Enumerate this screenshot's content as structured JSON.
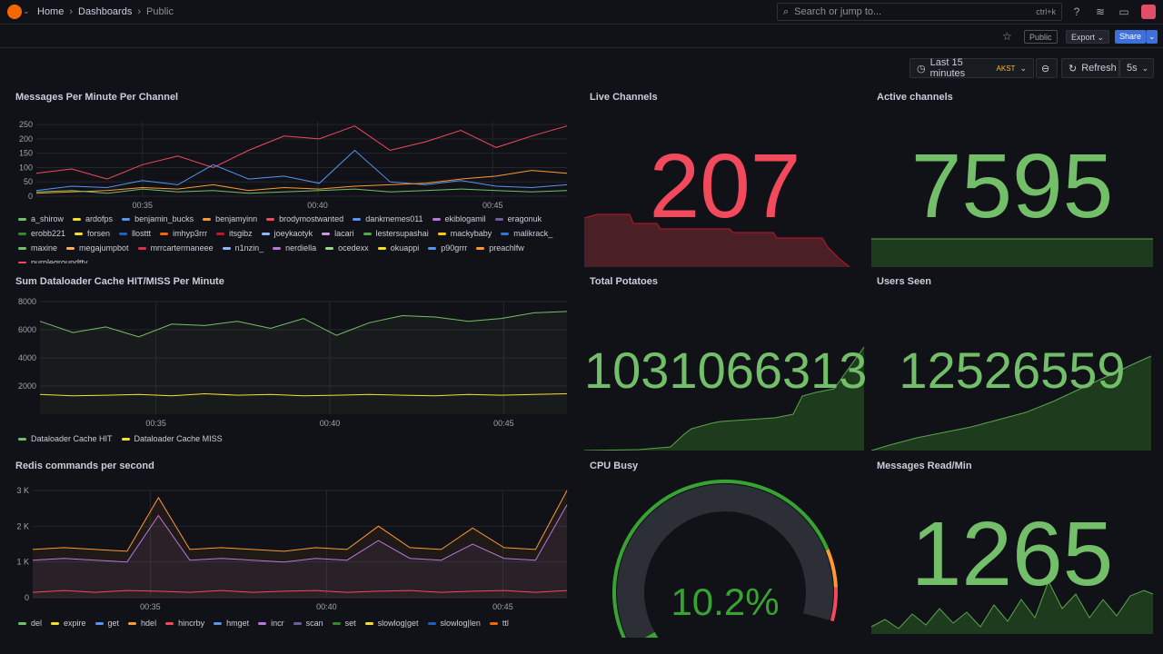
{
  "topbar": {
    "breadcrumbs": [
      "Home",
      "Dashboards",
      "Public"
    ],
    "search_placeholder": "Search or jump to...",
    "search_shortcut": "ctrl+k",
    "icons": [
      "grafana-logo-icon",
      "help-icon",
      "news-icon",
      "kiosk-icon",
      "avatar"
    ]
  },
  "subbar": {
    "public_badge": "Public",
    "export_label": "Export",
    "share_label": "Share"
  },
  "timebar": {
    "range": "Last 15 minutes",
    "timezone": "AKST",
    "refresh_label": "Refresh",
    "interval": "5s"
  },
  "colors": {
    "green": "#73bf69",
    "red": "#f2495c",
    "yellow": "#fade2a",
    "orange": "#ff9830",
    "blue": "#5794f2",
    "purple": "#b877d9"
  },
  "panels": {
    "messages": {
      "title": "Messages Per Minute Per Channel",
      "legend": [
        {
          "name": "a_shirow",
          "color": "#73bf69"
        },
        {
          "name": "ardofps",
          "color": "#fade2a"
        },
        {
          "name": "benjamin_bucks",
          "color": "#5794f2"
        },
        {
          "name": "benjamyinn",
          "color": "#ff9830"
        },
        {
          "name": "brodymostwanted",
          "color": "#f2495c"
        },
        {
          "name": "dankmemes011",
          "color": "#5794f2"
        },
        {
          "name": "ekiblogamil",
          "color": "#b877d9"
        },
        {
          "name": "eragonuk",
          "color": "#705da0"
        },
        {
          "name": "erobb221",
          "color": "#37872d"
        },
        {
          "name": "forsen",
          "color": "#fade2a"
        },
        {
          "name": "llosttt",
          "color": "#1f60c4"
        },
        {
          "name": "imhyp3rrr",
          "color": "#fa6400"
        },
        {
          "name": "itsgibz",
          "color": "#c4162a"
        },
        {
          "name": "joeykaotyk",
          "color": "#8ab8ff"
        },
        {
          "name": "lacari",
          "color": "#ca95e5"
        },
        {
          "name": "lestersupashai",
          "color": "#56a64b"
        },
        {
          "name": "mackybaby",
          "color": "#f2cc0c"
        },
        {
          "name": "malikrack_",
          "color": "#3274d9"
        },
        {
          "name": "maxine",
          "color": "#73bf69"
        },
        {
          "name": "megajumpbot",
          "color": "#ffb357"
        },
        {
          "name": "mrrcartermaneee",
          "color": "#e02f44"
        },
        {
          "name": "n1nzin_",
          "color": "#8ab8ff"
        },
        {
          "name": "nerdiella",
          "color": "#b877d9"
        },
        {
          "name": "ocedexx",
          "color": "#96d98d"
        },
        {
          "name": "okuappi",
          "color": "#fade2a"
        },
        {
          "name": "p90grrr",
          "color": "#5794f2"
        },
        {
          "name": "preachlfw",
          "color": "#ff9830"
        },
        {
          "name": "purplegroundttv",
          "color": "#f2495c"
        }
      ]
    },
    "dataloader": {
      "title": "Sum Dataloader Cache HIT/MISS Per Minute",
      "legend": [
        {
          "name": "Dataloader Cache HIT",
          "color": "#73bf69"
        },
        {
          "name": "Dataloader Cache MISS",
          "color": "#fade2a"
        }
      ]
    },
    "redis": {
      "title": "Redis commands per second",
      "legend": [
        {
          "name": "del",
          "color": "#73bf69"
        },
        {
          "name": "expire",
          "color": "#fade2a"
        },
        {
          "name": "get",
          "color": "#5794f2"
        },
        {
          "name": "hdel",
          "color": "#ff9830"
        },
        {
          "name": "hincrby",
          "color": "#f2495c"
        },
        {
          "name": "hmget",
          "color": "#5794f2"
        },
        {
          "name": "incr",
          "color": "#b877d9"
        },
        {
          "name": "scan",
          "color": "#705da0"
        },
        {
          "name": "set",
          "color": "#37872d"
        },
        {
          "name": "slowlog|get",
          "color": "#fade2a"
        },
        {
          "name": "slowlog|len",
          "color": "#1f60c4"
        },
        {
          "name": "ttl",
          "color": "#fa6400"
        }
      ]
    },
    "live_channels": {
      "title": "Live Channels",
      "value": "207"
    },
    "active_channels": {
      "title": "Active channels",
      "value": "7595"
    },
    "total_potatoes": {
      "title": "Total Potatoes",
      "value": "1031066313"
    },
    "users_seen": {
      "title": "Users Seen",
      "value": "12526559"
    },
    "cpu_busy": {
      "title": "CPU Busy",
      "value": "10.2%",
      "fraction": 0.102
    },
    "messages_read": {
      "title": "Messages Read/Min",
      "value": "1265"
    }
  },
  "chart_data": [
    {
      "type": "line",
      "title": "Messages Per Minute Per Channel",
      "x_ticks": [
        "00:35",
        "00:40",
        "00:45"
      ],
      "y_ticks": [
        "0",
        "50",
        "100",
        "150",
        "200",
        "250"
      ],
      "ylim": [
        0,
        260
      ],
      "series": [
        {
          "name": "brodymostwanted",
          "values": [
            80,
            95,
            60,
            110,
            140,
            100,
            160,
            210,
            200,
            245,
            160,
            190,
            230,
            170,
            210,
            245
          ]
        },
        {
          "name": "benjamin_bucks",
          "values": [
            20,
            35,
            30,
            55,
            40,
            110,
            60,
            70,
            45,
            160,
            50,
            40,
            55,
            35,
            30,
            40
          ]
        },
        {
          "name": "ardofps",
          "values": [
            10,
            15,
            20,
            30,
            25,
            40,
            20,
            30,
            25,
            35,
            40,
            45,
            60,
            70,
            90,
            80
          ]
        },
        {
          "name": "a_shirow",
          "values": [
            15,
            20,
            10,
            25,
            15,
            20,
            10,
            15,
            20,
            25,
            15,
            20,
            25,
            20,
            15,
            20
          ]
        }
      ]
    },
    {
      "type": "line",
      "title": "Sum Dataloader Cache HIT/MISS Per Minute",
      "x_ticks": [
        "00:35",
        "00:40",
        "00:45"
      ],
      "y_ticks": [
        "2000",
        "4000",
        "6000",
        "8000"
      ],
      "ylim": [
        0,
        8000
      ],
      "series": [
        {
          "name": "Dataloader Cache HIT",
          "values": [
            6600,
            5800,
            6200,
            5500,
            6400,
            6300,
            6600,
            6100,
            6800,
            5600,
            6500,
            7000,
            6900,
            6600,
            6800,
            7200,
            7300
          ]
        },
        {
          "name": "Dataloader Cache MISS",
          "values": [
            1400,
            1300,
            1350,
            1400,
            1300,
            1450,
            1350,
            1400,
            1300,
            1350,
            1400,
            1350,
            1300,
            1400,
            1350,
            1400,
            1450
          ]
        }
      ]
    },
    {
      "type": "line",
      "title": "Redis commands per second",
      "x_ticks": [
        "00:35",
        "00:40",
        "00:45"
      ],
      "y_ticks": [
        "0",
        "1 K",
        "2 K",
        "3 K"
      ],
      "ylim": [
        0,
        3000
      ],
      "series": [
        {
          "name": "expire",
          "values": [
            1350,
            1400,
            1350,
            1300,
            2800,
            1350,
            1400,
            1350,
            1300,
            1400,
            1350,
            2000,
            1400,
            1350,
            1950,
            1400,
            1350,
            3000
          ]
        },
        {
          "name": "get",
          "values": [
            1050,
            1100,
            1050,
            1000,
            2300,
            1050,
            1100,
            1050,
            1000,
            1100,
            1050,
            1600,
            1100,
            1050,
            1500,
            1100,
            1050,
            2600
          ]
        },
        {
          "name": "hincrby",
          "values": [
            150,
            200,
            150,
            200,
            180,
            150,
            200,
            150,
            180,
            200,
            150,
            180,
            200,
            150,
            180,
            200,
            150,
            200
          ]
        }
      ]
    }
  ]
}
